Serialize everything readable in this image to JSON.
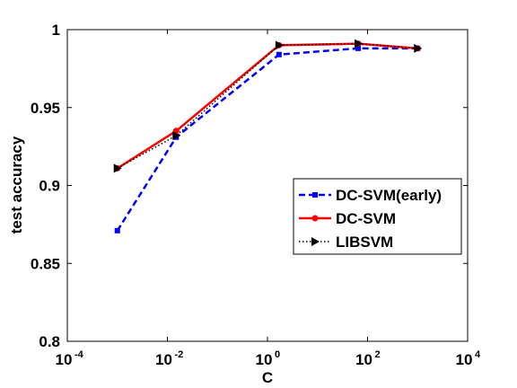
{
  "chart_data": {
    "type": "line",
    "xlabel": "C",
    "ylabel": "test accuracy",
    "xscale": "log",
    "xlim": [
      0.0001,
      10000
    ],
    "ylim": [
      0.8,
      1.0
    ],
    "x_ticks": [
      {
        "base": "10",
        "exp": "-4"
      },
      {
        "base": "10",
        "exp": "-2"
      },
      {
        "base": "10",
        "exp": "0"
      },
      {
        "base": "10",
        "exp": "2"
      },
      {
        "base": "10",
        "exp": "4"
      }
    ],
    "y_ticks": [
      "0.8",
      "0.85",
      "0.9",
      "0.95",
      "1"
    ],
    "x": [
      0.001,
      0.015,
      1.7,
      65,
      1000
    ],
    "series": [
      {
        "name": "DC-SVM(early)",
        "values": [
          0.871,
          0.931,
          0.984,
          0.988,
          0.988
        ],
        "color": "#0000ff",
        "line": "dashed",
        "marker": "square"
      },
      {
        "name": "DC-SVM",
        "values": [
          0.911,
          0.935,
          0.99,
          0.991,
          0.988
        ],
        "color": "#ff0000",
        "line": "solid",
        "marker": "circle"
      },
      {
        "name": "LIBSVM",
        "values": [
          0.911,
          0.932,
          0.99,
          0.991,
          0.988
        ],
        "color": "#000000",
        "line": "dotted",
        "marker": "triangle-right"
      }
    ],
    "legend_position": "right",
    "grid": false
  }
}
